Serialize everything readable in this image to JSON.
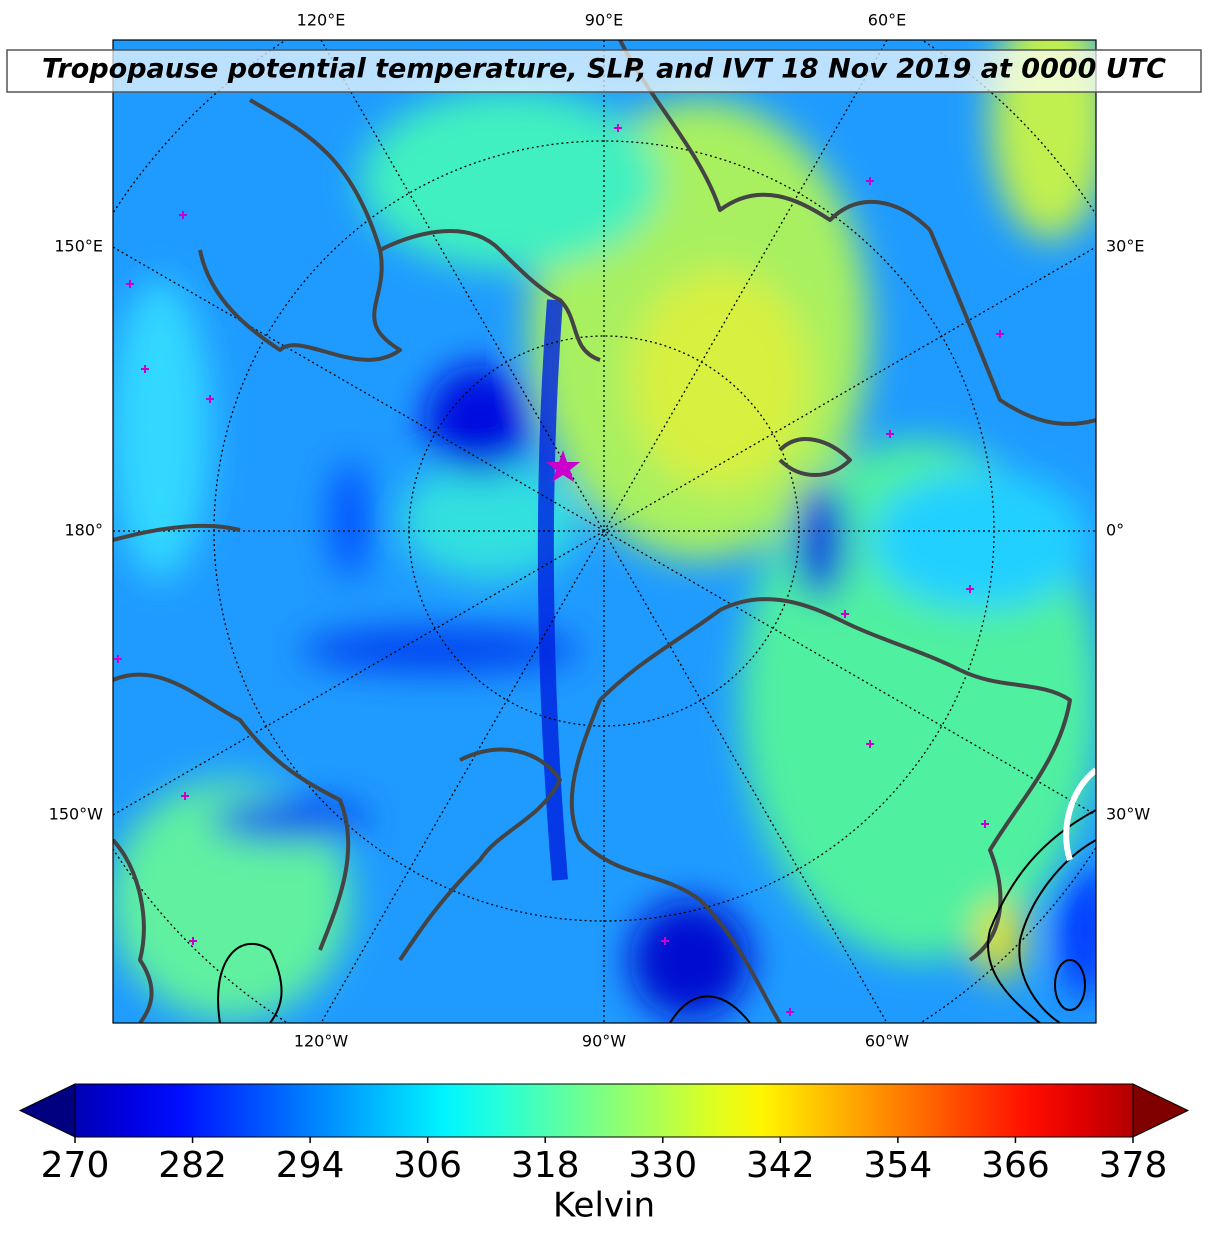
{
  "title": "Tropopause potential temperature, SLP, and IVT 18 Nov 2019 at 0000 UTC",
  "map": {
    "lon_labels_top": [
      "120°E",
      "90°E",
      "60°E"
    ],
    "lon_labels_bottom": [
      "120°W",
      "90°W",
      "60°W"
    ],
    "lon_labels_left": [
      "150°E",
      "180°",
      "150°W"
    ],
    "lon_labels_right": [
      "30°E",
      "0°",
      "30°W"
    ]
  },
  "colorbar": {
    "label": "Kelvin",
    "colormap": "jet",
    "lim": [
      270,
      378
    ],
    "ticks": [
      270,
      282,
      294,
      306,
      318,
      330,
      342,
      354,
      366,
      378
    ]
  }
}
